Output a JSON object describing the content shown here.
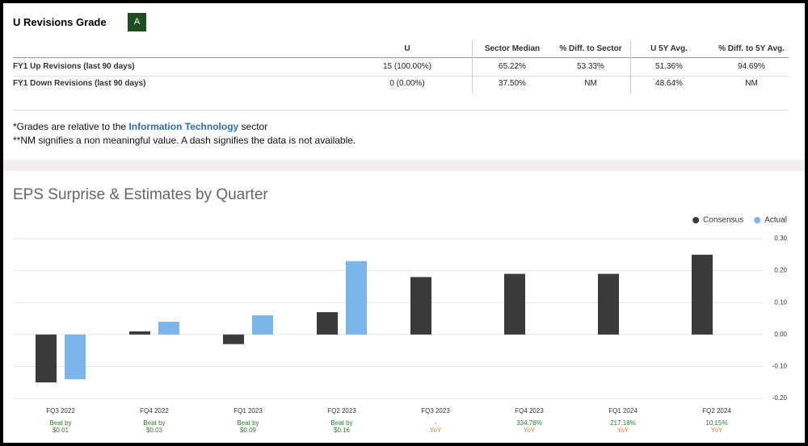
{
  "revisions": {
    "title": "U Revisions Grade",
    "grade": "A",
    "columns": [
      "U",
      "Sector Median",
      "% Diff. to Sector",
      "U 5Y Avg.",
      "% Diff. to 5Y Avg."
    ],
    "rows": [
      {
        "label": "FY1 Up Revisions (last 90 days)",
        "cells": [
          "15 (100.00%)",
          "65.22%",
          "53.33%",
          "51.36%",
          "94.69%"
        ]
      },
      {
        "label": "FY1 Down Revisions (last 90 days)",
        "cells": [
          "0 (0.00%)",
          "37.50%",
          "NM",
          "48.64%",
          "NM"
        ]
      }
    ]
  },
  "notes": {
    "line1": [
      "*Grades are relative to the ",
      "Information Technology",
      " sector"
    ],
    "line2": "**NM signifies a non meaningful value. A dash signifies the data is not available."
  },
  "chart_data": {
    "type": "bar",
    "title": "EPS Surprise & Estimates by Quarter",
    "categories": [
      "FQ3 2022",
      "FQ4 2022",
      "FQ1 2023",
      "FQ2 2023",
      "FQ3 2023",
      "FQ4 2023",
      "FQ1 2024",
      "FQ2 2024"
    ],
    "series": [
      {
        "name": "Consensus",
        "color": "#3a3a3c",
        "values": [
          -0.15,
          0.01,
          -0.03,
          0.07,
          0.18,
          0.19,
          0.19,
          0.25
        ]
      },
      {
        "name": "Actual",
        "color": "#7cb5ec",
        "values": [
          -0.14,
          0.04,
          0.06,
          0.23,
          null,
          null,
          null,
          null
        ]
      }
    ],
    "annotations": [
      {
        "text": [
          "Beat by",
          "$0.01"
        ],
        "colors": [
          "#2e7d32",
          "#2e7d32"
        ]
      },
      {
        "text": [
          "Beat by",
          "$0.03"
        ],
        "colors": [
          "#2e7d32",
          "#2e7d32"
        ]
      },
      {
        "text": [
          "Beat by",
          "$0.09"
        ],
        "colors": [
          "#2e7d32",
          "#2e7d32"
        ]
      },
      {
        "text": [
          "Beat by",
          "$0.16"
        ],
        "colors": [
          "#2e7d32",
          "#2e7d32"
        ]
      },
      {
        "text": [
          "-",
          "YoY"
        ],
        "colors": [
          "#2e7d32",
          "#e67e22"
        ]
      },
      {
        "text": [
          "334.78%",
          "YoY"
        ],
        "colors": [
          "#2e7d32",
          "#e67e22"
        ]
      },
      {
        "text": [
          "217.18%",
          "YoY"
        ],
        "colors": [
          "#2e7d32",
          "#e67e22"
        ]
      },
      {
        "text": [
          "10.15%",
          "YoY"
        ],
        "colors": [
          "#2e7d32",
          "#e67e22"
        ]
      }
    ],
    "ylim": [
      -0.2,
      0.3
    ],
    "yticks": [
      {
        "value": 0.3,
        "label": "0.30"
      },
      {
        "value": 0.2,
        "label": "0.20"
      },
      {
        "value": 0.1,
        "label": "0.10"
      },
      {
        "value": 0,
        "label": "0.00"
      },
      {
        "value": -0.1,
        "label": "-0.10"
      },
      {
        "value": -0.2,
        "label": "-0.20"
      }
    ],
    "grid": true,
    "legend": "top-right"
  }
}
